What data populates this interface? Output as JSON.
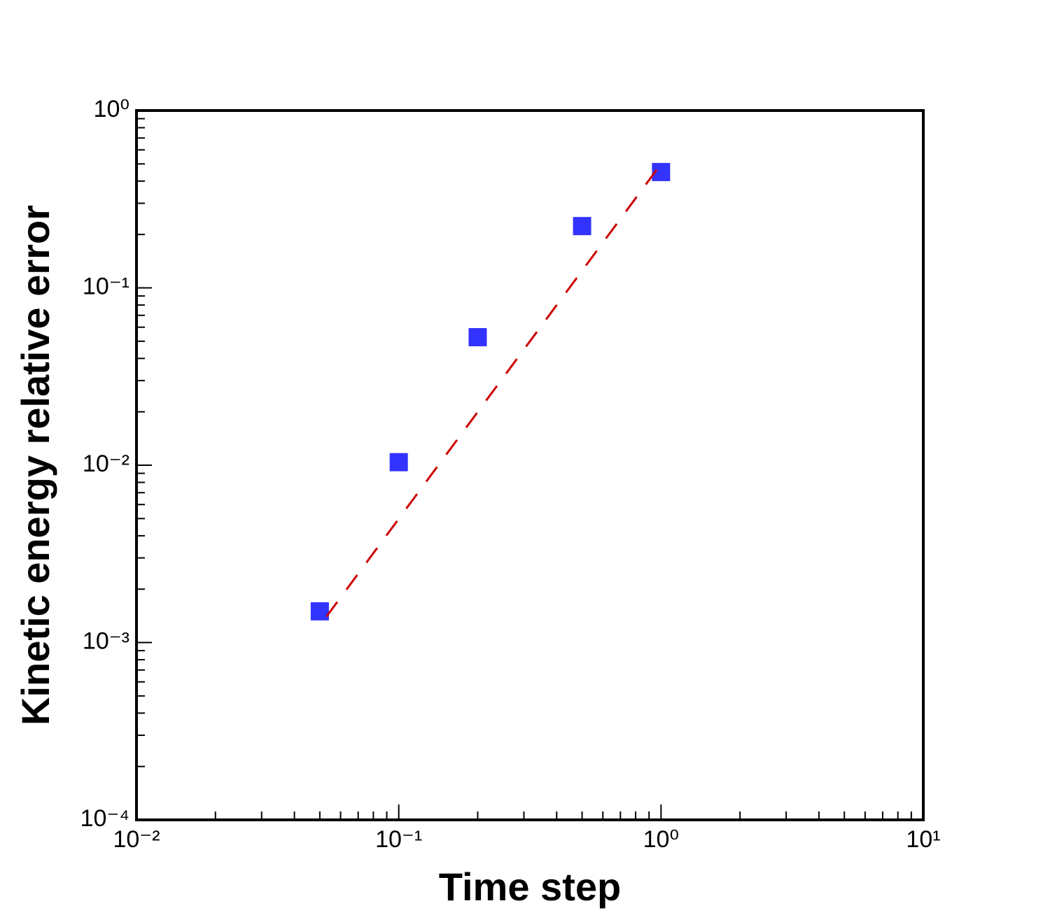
{
  "chart_data": {
    "type": "scatter",
    "x_label": "Time step",
    "y_label": "Kinetic energy relative error",
    "log_x": true,
    "log_y": true,
    "minor_ticks": true,
    "xlim": [
      0.01,
      10
    ],
    "ylim": [
      0.0001,
      1
    ],
    "xticks": [
      {
        "value": 0.01,
        "label": "10⁻²"
      },
      {
        "value": 0.1,
        "label": "10⁻¹"
      },
      {
        "value": 1,
        "label": "10⁰"
      },
      {
        "value": 10,
        "label": "10¹"
      }
    ],
    "yticks": [
      {
        "value": 0.0001,
        "label": "10⁻⁴"
      },
      {
        "value": 0.001,
        "label": "10⁻³"
      },
      {
        "value": 0.01,
        "label": "10⁻²"
      },
      {
        "value": 0.1,
        "label": "10⁻¹"
      },
      {
        "value": 1,
        "label": "10⁰"
      }
    ],
    "series": [
      {
        "type": "scatter",
        "color": "#3333ff",
        "marker": "square",
        "x": [
          0.05,
          0.1,
          0.2,
          0.5,
          1
        ],
        "values": [
          0.0015,
          0.0104,
          0.0527,
          0.223,
          0.45
        ]
      },
      {
        "type": "line",
        "color": "#cc0000",
        "style": "dashed",
        "x": [
          0.053,
          1
        ],
        "values": [
          0.0014,
          0.5
        ]
      }
    ]
  }
}
